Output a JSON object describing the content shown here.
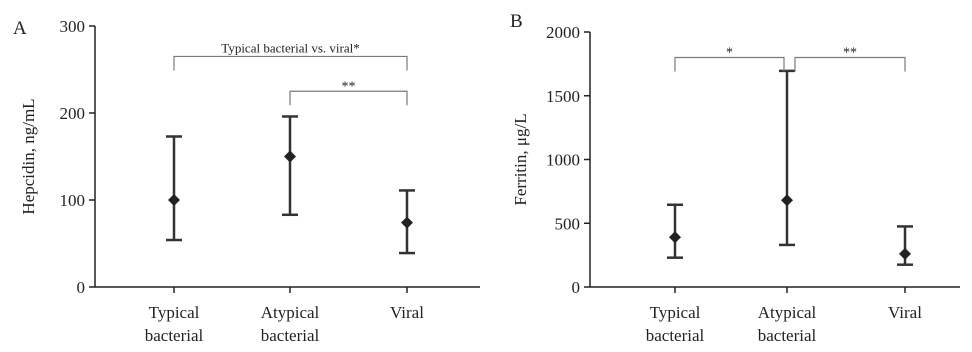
{
  "colors": {
    "axis": "#222222",
    "errorbar": "#333333",
    "marker": "#222222",
    "bracket": "#7a7a7a"
  },
  "chart_data": [
    {
      "type": "scatter",
      "panel": "A",
      "ylabel": "Hepcidin, ng/mL",
      "ylim": [
        0,
        300
      ],
      "yticks": [
        0,
        100,
        200,
        300
      ],
      "categories": [
        "Typical bacterial",
        "Atypical bacterial",
        "Viral"
      ],
      "category_lines": [
        [
          "Typical",
          "bacterial"
        ],
        [
          "Atypical",
          "bacterial"
        ],
        [
          "Viral"
        ]
      ],
      "series": [
        {
          "values": [
            100,
            150,
            74
          ],
          "lower": [
            54,
            83,
            39
          ],
          "upper": [
            173,
            196,
            111
          ]
        }
      ],
      "annotations": [
        {
          "from": 0,
          "to": 2,
          "label": "Typical bacterial vs. viral*",
          "y": 265
        },
        {
          "from": 1,
          "to": 2,
          "label": "**",
          "y": 225
        }
      ]
    },
    {
      "type": "scatter",
      "panel": "B",
      "ylabel": "Ferritin, μg/L",
      "ylim": [
        0,
        2000
      ],
      "yticks": [
        0,
        500,
        1000,
        1500,
        2000
      ],
      "categories": [
        "Typical bacterial",
        "Atypical bacterial",
        "Viral"
      ],
      "category_lines": [
        [
          "Typical",
          "bacterial"
        ],
        [
          "Atypical",
          "bacterial"
        ],
        [
          "Viral"
        ]
      ],
      "series": [
        {
          "values": [
            390,
            680,
            260
          ],
          "lower": [
            230,
            330,
            175
          ],
          "upper": [
            645,
            1695,
            475
          ]
        }
      ],
      "annotations": [
        {
          "from": 0,
          "to": 1,
          "label": "*",
          "y": 1800
        },
        {
          "from": 1,
          "to": 2,
          "label": "**",
          "y": 1800
        }
      ]
    }
  ]
}
